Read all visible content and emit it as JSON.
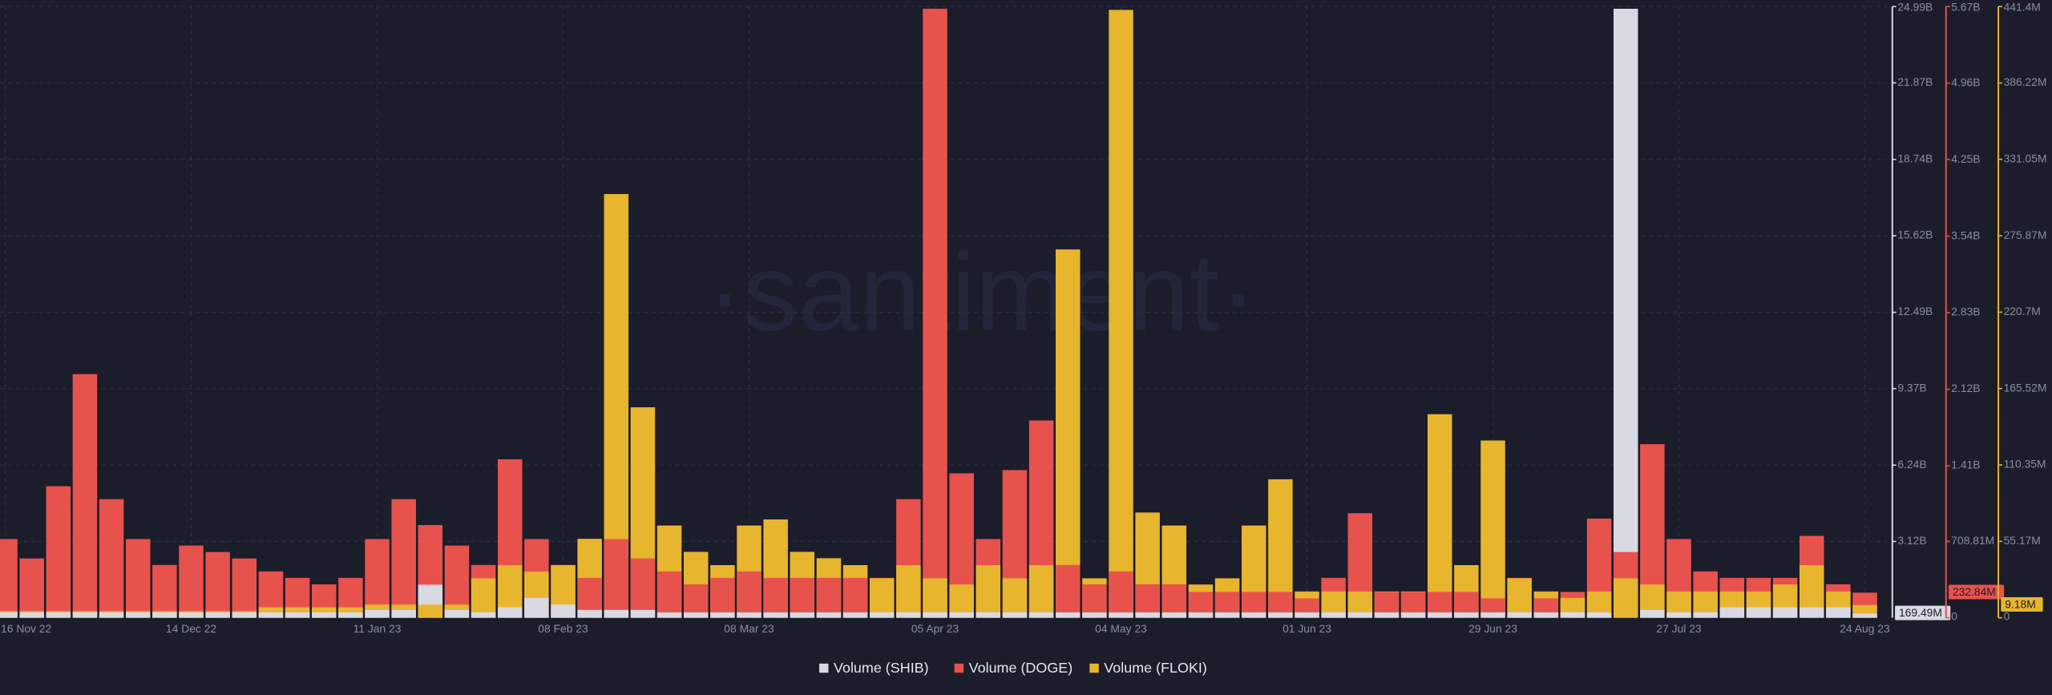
{
  "chart_data": {
    "type": "bar",
    "watermark": "·santiment·",
    "grid": true,
    "categories": [
      "16 Nov 22",
      null,
      null,
      null,
      null,
      null,
      null,
      "14 Dec 22",
      null,
      null,
      null,
      null,
      null,
      null,
      "11 Jan 23",
      null,
      null,
      null,
      null,
      null,
      null,
      "08 Feb 23",
      null,
      null,
      null,
      null,
      null,
      null,
      "08 Mar 23",
      null,
      null,
      null,
      null,
      null,
      null,
      "05 Apr 23",
      null,
      null,
      null,
      null,
      null,
      null,
      "04 May 23",
      null,
      null,
      null,
      null,
      null,
      null,
      "01 Jun 23",
      null,
      null,
      null,
      null,
      null,
      null,
      "29 Jun 23",
      null,
      null,
      null,
      null,
      null,
      null,
      "27 Jul 23",
      null,
      null,
      null,
      null,
      null,
      null,
      "24 Aug 23"
    ],
    "ylim": [
      0,
      24990000000.0
    ],
    "yticks": [
      {
        "value": 3120000000.0,
        "label": "3.12B"
      },
      {
        "value": 6240000000.0,
        "label": "6.24B"
      },
      {
        "value": 9370000000.0,
        "label": "9.37B"
      },
      {
        "value": 12490000000.0,
        "label": "12.49B"
      },
      {
        "value": 15620000000.0,
        "label": "15.62B"
      },
      {
        "value": 18740000000.0,
        "label": "18.74B"
      },
      {
        "value": 21870000000.0,
        "label": "21.87B"
      },
      {
        "value": 24990000000.0,
        "label": "24.99B"
      }
    ],
    "y2lim": [
      0,
      5670000000.0
    ],
    "y2ticks": [
      0,
      {
        "value": 708810000.0,
        "label": "708.81M"
      },
      {
        "value": 1410000000.0,
        "label": "1.41B"
      },
      {
        "value": 2120000000.0,
        "label": "2.12B"
      },
      {
        "value": 2830000000.0,
        "label": "2.83B"
      },
      {
        "value": 3540000000.0,
        "label": "3.54B"
      },
      {
        "value": 4250000000.0,
        "label": "4.25B"
      },
      {
        "value": 4960000000.0,
        "label": "4.96B"
      },
      {
        "value": 5670000000.0,
        "label": "5.67B"
      }
    ],
    "y3lim": [
      0,
      441400000.0
    ],
    "y3ticks": [
      0,
      {
        "value": 55170000.0,
        "label": "55.17M"
      },
      {
        "value": 110350000.0,
        "label": "110.35M"
      },
      {
        "value": 165520000.0,
        "label": "165.52M"
      },
      {
        "value": 220700000.0,
        "label": "220.7M"
      },
      {
        "value": 275870000.0,
        "label": "275.87M"
      },
      {
        "value": 331050000.0,
        "label": "331.05M"
      },
      {
        "value": 386220000.0,
        "label": "386.22M"
      },
      {
        "value": 441400000.0,
        "label": "441.4M"
      }
    ],
    "series": [
      {
        "name": "Volume (SHIB)",
        "color": "#d9d9e3",
        "axis": "y",
        "last_label": "169.49M",
        "values": [
          220000000.0,
          220000000.0,
          220000000.0,
          220000000.0,
          220000000.0,
          220000000.0,
          220000000.0,
          220000000.0,
          220000000.0,
          220000000.0,
          220000000.0,
          220000000.0,
          220000000.0,
          220000000.0,
          320000000.0,
          320000000.0,
          1350000000.0,
          320000000.0,
          220000000.0,
          430000000.0,
          810000000.0,
          540000000.0,
          320000000.0,
          320000000.0,
          320000000.0,
          220000000.0,
          220000000.0,
          220000000.0,
          220000000.0,
          220000000.0,
          220000000.0,
          220000000.0,
          220000000.0,
          220000000.0,
          220000000.0,
          220000000.0,
          220000000.0,
          220000000.0,
          220000000.0,
          220000000.0,
          220000000.0,
          220000000.0,
          220000000.0,
          220000000.0,
          220000000.0,
          220000000.0,
          220000000.0,
          220000000.0,
          220000000.0,
          220000000.0,
          220000000.0,
          220000000.0,
          220000000.0,
          220000000.0,
          220000000.0,
          220000000.0,
          220000000.0,
          220000000.0,
          220000000.0,
          220000000.0,
          220000000.0,
          24900000000.0,
          320000000.0,
          220000000.0,
          220000000.0,
          430000000.0,
          430000000.0,
          430000000.0,
          430000000.0,
          430000000.0,
          169490000.0
        ]
      },
      {
        "name": "Volume (DOGE)",
        "color": "#e8524d",
        "axis": "y2",
        "last_label": "232.84M",
        "values": [
          730000000.0,
          550000000.0,
          1220000000.0,
          2260000000.0,
          1100000000.0,
          730000000.0,
          490000000.0,
          670000000.0,
          610000000.0,
          550000000.0,
          430000000.0,
          370000000.0,
          310000000.0,
          370000000.0,
          730000000.0,
          1100000000.0,
          860000000.0,
          670000000.0,
          490000000.0,
          1470000000.0,
          730000000.0,
          490000000.0,
          370000000.0,
          730000000.0,
          550000000.0,
          430000000.0,
          310000000.0,
          370000000.0,
          430000000.0,
          370000000.0,
          370000000.0,
          370000000.0,
          370000000.0,
          370000000.0,
          1100000000.0,
          5650000000.0,
          1340000000.0,
          730000000.0,
          1370000000.0,
          1830000000.0,
          490000000.0,
          310000000.0,
          430000000.0,
          310000000.0,
          310000000.0,
          240000000.0,
          240000000.0,
          240000000.0,
          240000000.0,
          180000000.0,
          370000000.0,
          970000000.0,
          240000000.0,
          240000000.0,
          240000000.0,
          240000000.0,
          180000000.0,
          370000000.0,
          180000000.0,
          240000000.0,
          920000000.0,
          610000000.0,
          1610000000.0,
          730000000.0,
          430000000.0,
          370000000.0,
          370000000.0,
          370000000.0,
          760000000.0,
          310000000.0,
          232840000.0
        ]
      },
      {
        "name": "Volume (FLOKI)",
        "color": "#e8b52f",
        "axis": "y3",
        "last_label": "9.18M",
        "values": [
          4800000.0,
          4800000.0,
          4800000.0,
          4800000.0,
          4800000.0,
          4800000.0,
          4800000.0,
          4800000.0,
          4800000.0,
          4800000.0,
          7600000.0,
          7600000.0,
          7600000.0,
          7600000.0,
          9500000.0,
          9500000.0,
          9500000.0,
          9500000.0,
          28500000.0,
          38000000.0,
          33300000.0,
          38000000.0,
          57000000.0,
          306000000.0,
          152000000.0,
          66600000.0,
          47600000.0,
          38000000.0,
          66600000.0,
          71000000.0,
          47600000.0,
          43000000.0,
          38000000.0,
          28500000.0,
          38000000.0,
          28500000.0,
          24000000.0,
          38000000.0,
          28500000.0,
          38000000.0,
          266000000.0,
          28500000.0,
          439000000.0,
          76000000.0,
          66600000.0,
          24000000.0,
          28500000.0,
          66600000.0,
          100000000.0,
          19000000.0,
          19000000.0,
          19000000.0,
          19000000.0,
          19000000.0,
          147000000.0,
          38000000.0,
          128000000.0,
          28500000.0,
          19000000.0,
          14300000.0,
          19000000.0,
          28500000.0,
          24000000.0,
          19000000.0,
          19000000.0,
          19000000.0,
          19000000.0,
          24000000.0,
          38000000.0,
          19000000.0,
          9180000.0
        ]
      }
    ]
  }
}
